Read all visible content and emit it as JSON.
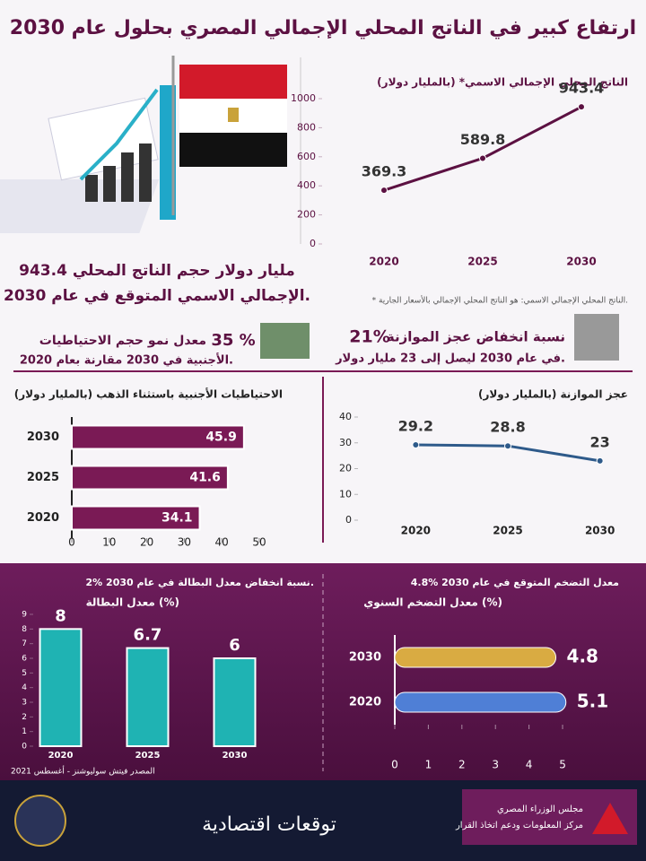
{
  "header": {
    "title": "ارتفاع كبير في الناتج المحلي الإجمالي المصري بحلول عام 2030"
  },
  "headline": [
    "943.4 مليار دولار حجم الناتج المحلي",
    "الإجمالي الاسمي المتوقع في عام 2030."
  ],
  "stats": [
    {
      "figure": "21%",
      "lines": [
        "نسبة انخفاض عجز الموازنة",
        "في عام 2030 ليصل إلى 23 مليار دولار."
      ]
    },
    {
      "figure": "35 %",
      "lines": [
        "معدل نمو حجم الاحتياطيات",
        "الأجنبية في 2030 مقارنة بعام 2020."
      ]
    }
  ],
  "chart_data": [
    {
      "type": "line",
      "title": "الناتج المحلي الإجمالي الاسمي* (بالمليار دولار)",
      "note": "* الناتج المحلي الإجمالي الاسمي: هو الناتج المحلي الإجمالي بالأسعار الجارية.",
      "categories": [
        "2020",
        "2025",
        "2030"
      ],
      "values": [
        369.3,
        589.8,
        943.4
      ],
      "color": "#5c1142",
      "ylim": [
        0,
        1000
      ],
      "yticks": [
        0,
        200,
        400,
        600,
        800,
        1000
      ]
    },
    {
      "type": "hbar",
      "title": "الاحتياطيات الأجنبية باستثناء الذهب (بالمليار دولار)",
      "categories": [
        "2030",
        "2025",
        "2020"
      ],
      "values": [
        45.9,
        41.6,
        34.1
      ],
      "color": "#7a1a55",
      "xlim": [
        0,
        50
      ],
      "xticks": [
        0,
        10,
        20,
        30,
        40,
        50
      ]
    },
    {
      "type": "line",
      "title": "عجز الموازنة (بالمليار دولار)",
      "categories": [
        "2020",
        "2025",
        "2030"
      ],
      "values": [
        29.2,
        28.8,
        23
      ],
      "color": "#2e5a8a",
      "ylim": [
        0,
        40
      ],
      "yticks": [
        0,
        10,
        20,
        30,
        40
      ]
    },
    {
      "type": "bar",
      "subtitle": "2% نسبة انخفاض معدل البطالة في عام 2030.",
      "title": "معدل البطالة (%)",
      "categories": [
        "2020",
        "2025",
        "2030"
      ],
      "values": [
        8,
        6.7,
        6
      ],
      "color": "#1fb3b3",
      "ylim": [
        0,
        9
      ],
      "yticks": [
        0,
        1,
        2,
        3,
        4,
        5,
        6,
        7,
        8,
        9
      ]
    },
    {
      "type": "hbar",
      "subtitle": "4.8% معدل التضخم المتوقع في عام 2030",
      "title": "معدل التضخم السنوي (%)",
      "categories": [
        "2030",
        "2020"
      ],
      "values": [
        4.8,
        5.1
      ],
      "colors": [
        "#d9ab42",
        "#4f7fd6"
      ],
      "xlim": [
        0,
        5.2
      ],
      "xticks": [
        0,
        1,
        2,
        3,
        4,
        5
      ]
    }
  ],
  "source": "المصدر فيتش سوليوشنز - أغسطس 2021",
  "footer": {
    "title": "توقعات اقتصادية",
    "org": [
      "مجلس الوزراء المصري",
      "مركز المعلومات ودعم اتخاذ القرار"
    ]
  }
}
